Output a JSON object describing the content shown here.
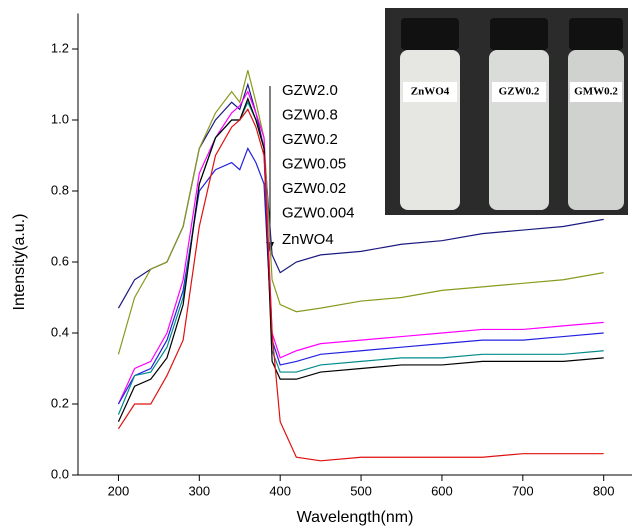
{
  "chart_data": {
    "type": "line",
    "x_label": "Wavelength(nm)",
    "y_label": "Intensity(a.u.)",
    "x": [
      200,
      220,
      240,
      260,
      280,
      300,
      320,
      340,
      350,
      360,
      370,
      380,
      390,
      400,
      420,
      450,
      500,
      550,
      600,
      650,
      700,
      750,
      800
    ],
    "series": [
      {
        "name": "GZW2.0",
        "color": "#1a1a80",
        "values": [
          0.47,
          0.55,
          0.58,
          0.6,
          0.7,
          0.92,
          1.0,
          1.05,
          1.03,
          1.1,
          1.02,
          0.92,
          0.62,
          0.57,
          0.6,
          0.62,
          0.63,
          0.65,
          0.66,
          0.68,
          0.69,
          0.7,
          0.72
        ]
      },
      {
        "name": "GZW0.8",
        "color": "#8a9a1e",
        "values": [
          0.34,
          0.5,
          0.58,
          0.6,
          0.7,
          0.92,
          1.02,
          1.08,
          1.05,
          1.14,
          1.05,
          0.95,
          0.55,
          0.48,
          0.46,
          0.47,
          0.49,
          0.5,
          0.52,
          0.53,
          0.54,
          0.55,
          0.57
        ]
      },
      {
        "name": "GZW0.2",
        "color": "#ff00ff",
        "values": [
          0.2,
          0.3,
          0.32,
          0.4,
          0.55,
          0.85,
          0.95,
          1.02,
          1.04,
          1.08,
          1.02,
          0.95,
          0.4,
          0.33,
          0.35,
          0.37,
          0.38,
          0.39,
          0.4,
          0.41,
          0.41,
          0.42,
          0.43
        ]
      },
      {
        "name": "GZW0.05",
        "color": "#2222e0",
        "values": [
          0.2,
          0.28,
          0.3,
          0.38,
          0.52,
          0.8,
          0.86,
          0.88,
          0.86,
          0.92,
          0.88,
          0.82,
          0.38,
          0.31,
          0.32,
          0.34,
          0.35,
          0.36,
          0.37,
          0.38,
          0.38,
          0.39,
          0.4
        ]
      },
      {
        "name": "GZW0.02",
        "color": "#008b8b",
        "values": [
          0.17,
          0.28,
          0.29,
          0.36,
          0.5,
          0.82,
          0.95,
          1.0,
          1.0,
          1.05,
          1.0,
          0.92,
          0.35,
          0.29,
          0.29,
          0.31,
          0.32,
          0.33,
          0.33,
          0.34,
          0.34,
          0.34,
          0.35
        ]
      },
      {
        "name": "GZW0.004",
        "color": "#000000",
        "values": [
          0.15,
          0.25,
          0.27,
          0.33,
          0.48,
          0.82,
          0.95,
          1.0,
          1.0,
          1.06,
          1.0,
          0.92,
          0.32,
          0.27,
          0.27,
          0.29,
          0.3,
          0.31,
          0.31,
          0.32,
          0.32,
          0.32,
          0.33
        ]
      },
      {
        "name": "ZnWO4",
        "color": "#e01010",
        "values": [
          0.13,
          0.2,
          0.2,
          0.28,
          0.38,
          0.7,
          0.9,
          0.98,
          1.0,
          1.03,
          0.98,
          0.9,
          0.4,
          0.15,
          0.05,
          0.04,
          0.05,
          0.05,
          0.05,
          0.05,
          0.06,
          0.06,
          0.06
        ]
      }
    ],
    "xlim": [
      150,
      835
    ],
    "ylim": [
      0,
      1.3
    ],
    "xticks": [
      200,
      300,
      400,
      500,
      600,
      700,
      800
    ],
    "yticks": [
      {
        "value": 0,
        "label": "0.0"
      },
      0.2,
      0.4,
      0.6,
      0.8,
      {
        "value": 1,
        "label": "1.0"
      },
      1.2
    ],
    "inset_labels": [
      "ZnWO4",
      "GZW0.2",
      "GMW0.2"
    ]
  }
}
